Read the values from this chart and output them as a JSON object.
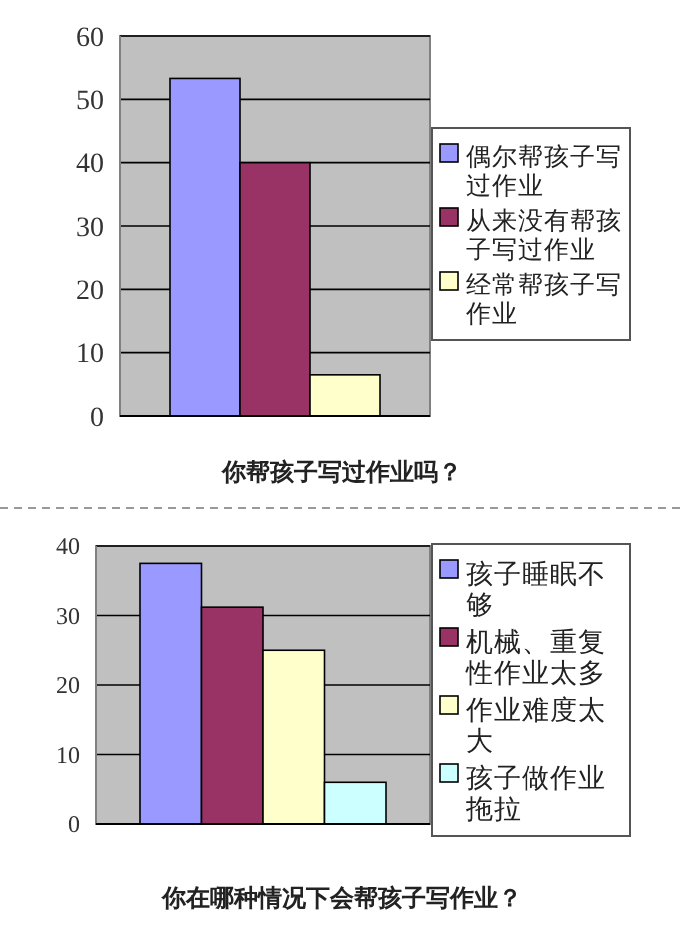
{
  "chart_data": [
    {
      "type": "bar",
      "title": "你帮孩子写过作业吗？",
      "categories": [
        null
      ],
      "series": [
        {
          "name": "偶尔帮孩子写过作业",
          "color": "#9999ff",
          "values": [
            53.3
          ]
        },
        {
          "name": "从来没有帮孩子写过作业",
          "color": "#993366",
          "values": [
            40
          ]
        },
        {
          "name": "经常帮孩子写作业",
          "color": "#ffffcc",
          "values": [
            6.5
          ]
        }
      ],
      "ylim": [
        0,
        60
      ],
      "yticks": [
        0,
        10,
        20,
        30,
        40,
        50,
        60
      ],
      "grid": "y",
      "legend": "right"
    },
    {
      "type": "bar",
      "title": "你在哪种情况下会帮孩子写作业？",
      "categories": [
        null
      ],
      "series": [
        {
          "name": "孩子睡眠不够",
          "color": "#9999ff",
          "values": [
            37.5
          ]
        },
        {
          "name": "机械、重复性作业太多",
          "color": "#993366",
          "values": [
            31.2
          ]
        },
        {
          "name": "作业难度太大",
          "color": "#ffffcc",
          "values": [
            25
          ]
        },
        {
          "name": "孩子做作业拖拉",
          "color": "#ccffff",
          "values": [
            6
          ]
        }
      ],
      "ylim": [
        0,
        40
      ],
      "yticks": [
        0,
        10,
        20,
        30,
        40
      ],
      "grid": "y",
      "legend": "right"
    }
  ]
}
